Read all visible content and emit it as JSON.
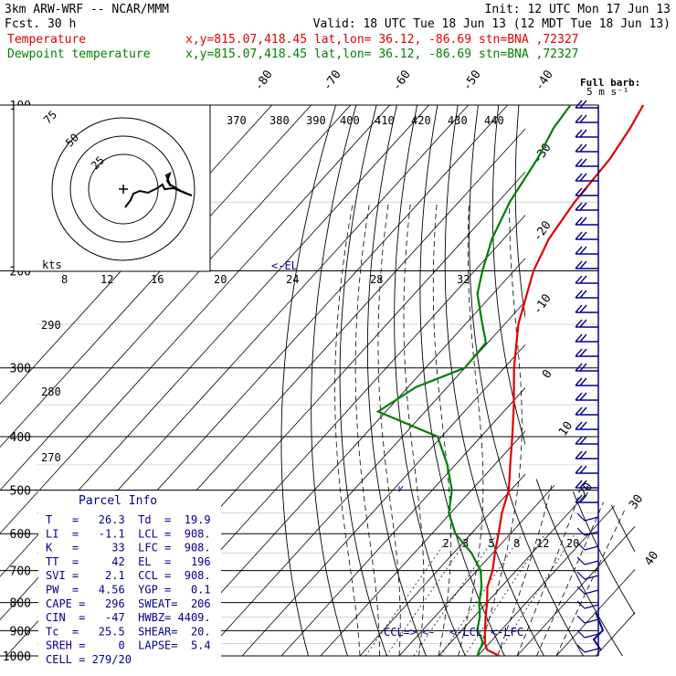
{
  "header": {
    "model": "3km ARW-WRF -- NCAR/MMM",
    "init": "Init: 12 UTC Mon 17 Jun 13",
    "fcst": "Fcst.    30 h",
    "valid": "Valid: 18 UTC Tue 18 Jun 13 (12 MDT Tue 18 Jun 13)",
    "temp_name": "Temperature",
    "temp_loc": "x,y=815.07,418.45   lat,lon= 36.12, -86.69   stn=BNA ,72327",
    "dew_name": "Dewpoint temperature",
    "dew_loc": "x,y=815.07,418.45   lat,lon= 36.12, -86.69   stn=BNA ,72327",
    "barb_title": "Full barb:",
    "barb_units": "5 m s⁻¹"
  },
  "colors": {
    "temperature": "#e00000",
    "dewpoint": "#008000",
    "wind_barbs": "#000090",
    "el_marker": "#000090"
  },
  "chart_data": {
    "type": "line",
    "title": "",
    "pressure_levels": [
      100,
      200,
      300,
      400,
      500,
      600,
      700,
      800,
      900,
      1000
    ],
    "temp_isotherm_labels": [
      -80,
      -70,
      -60,
      -50,
      -40,
      -30,
      -20,
      -10,
      0,
      10,
      20,
      30,
      40
    ],
    "theta_labels": [
      370,
      380,
      390,
      400,
      410,
      420,
      430,
      440
    ],
    "theta_labels_left": [
      290,
      280,
      270
    ],
    "mixing_ratio_labels": [
      2,
      3,
      5,
      8,
      12,
      20
    ],
    "hodograph_labels": {
      "rings": [
        75,
        50,
        25
      ],
      "units": "kts",
      "speeds": [
        8,
        12,
        16,
        20,
        24,
        28,
        32
      ]
    },
    "series": [
      {
        "name": "Temperature",
        "points": [
          [
            1000,
            25.5
          ],
          [
            975,
            21.0
          ],
          [
            950,
            19.0
          ],
          [
            925,
            17.5
          ],
          [
            900,
            16.0
          ],
          [
            850,
            13.0
          ],
          [
            800,
            10.0
          ],
          [
            750,
            6.5
          ],
          [
            700,
            4.0
          ],
          [
            650,
            0.5
          ],
          [
            600,
            -3.0
          ],
          [
            550,
            -7.0
          ],
          [
            500,
            -10.5
          ],
          [
            450,
            -16.0
          ],
          [
            400,
            -22.0
          ],
          [
            350,
            -29.0
          ],
          [
            300,
            -37.5
          ],
          [
            250,
            -46.5
          ],
          [
            200,
            -55.0
          ],
          [
            175,
            -58.5
          ],
          [
            150,
            -60.5
          ],
          [
            125,
            -61.5
          ],
          [
            110,
            -63.5
          ],
          [
            100,
            -65.5
          ]
        ]
      },
      {
        "name": "Dewpoint temperature",
        "points": [
          [
            1000,
            19.9
          ],
          [
            975,
            19.0
          ],
          [
            950,
            18.5
          ],
          [
            925,
            16.5
          ],
          [
            900,
            14.0
          ],
          [
            850,
            11.5
          ],
          [
            800,
            8.0
          ],
          [
            750,
            5.0
          ],
          [
            700,
            1.0
          ],
          [
            650,
            -5.5
          ],
          [
            600,
            -14.0
          ],
          [
            550,
            -20.5
          ],
          [
            500,
            -25.0
          ],
          [
            450,
            -32.0
          ],
          [
            400,
            -41.0
          ],
          [
            360,
            -62.0
          ],
          [
            325,
            -58.0
          ],
          [
            300,
            -50.0
          ],
          [
            270,
            -50.5
          ],
          [
            245,
            -57.0
          ],
          [
            220,
            -64.0
          ],
          [
            200,
            -68.0
          ],
          [
            175,
            -73.0
          ],
          [
            150,
            -77.0
          ],
          [
            125,
            -80.0
          ],
          [
            110,
            -83.0
          ],
          [
            100,
            -84.0
          ]
        ]
      }
    ],
    "parcel_markers": {
      "el": "<-EL",
      "ccl": "CCL=>",
      "lcl": "<-LCL",
      "lfc": "<-LFC",
      "lcl_arrow": "<-"
    }
  },
  "parcel_info": {
    "title": "Parcel Info",
    "rows": [
      "T   =   26.3  Td  =  19.9",
      "LI  =   -1.1  LCL =  908.",
      "K   =     33  LFC =  908.",
      "TT  =     42  EL  =   196",
      "SVI =    2.1  CCL =  908.",
      "PW  =   4.56  YGP =   0.1",
      "CAPE =   296  SWEAT=  206",
      "CIN  =   -47  HWBZ= 4409.",
      "Tc  =   25.5  SHEAR=  20.",
      "SREH =     0  LAPSE=  5.4",
      "CELL = 279/20"
    ]
  }
}
